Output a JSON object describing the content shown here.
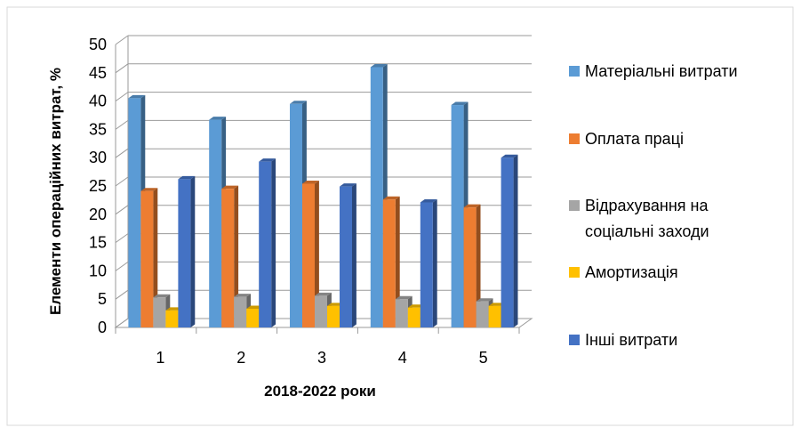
{
  "chart_data": {
    "type": "bar",
    "title": "",
    "xlabel": "2018-2022 роки",
    "ylabel": "Елементи операційних витрат, %",
    "ylim": [
      0,
      50
    ],
    "y_ticks": [
      0,
      5,
      10,
      15,
      20,
      25,
      30,
      35,
      40,
      45,
      50
    ],
    "categories": [
      "1",
      "2",
      "3",
      "4",
      "5"
    ],
    "grid": true,
    "legend_position": "right",
    "series": [
      {
        "name": "Матеріальні витрати",
        "color": "#5B9BD5",
        "values": [
          40.5,
          36.7,
          39.5,
          46.0,
          39.3
        ]
      },
      {
        "name": "Оплата праці",
        "color": "#ED7D31",
        "values": [
          24.1,
          24.5,
          25.4,
          22.6,
          21.2
        ]
      },
      {
        "name": "Відрахування на соціальні заходи",
        "legend_lines": [
          "Відрахування на",
          "соціальні заходи"
        ],
        "color": "#A5A5A5",
        "values": [
          5.3,
          5.4,
          5.6,
          5.0,
          4.6
        ]
      },
      {
        "name": "Амортизація",
        "color": "#FFC000",
        "values": [
          3.0,
          3.3,
          3.8,
          3.5,
          3.8
        ]
      },
      {
        "name": "Інші витрати",
        "color": "#4472C4",
        "values": [
          26.2,
          29.3,
          24.9,
          22.1,
          30.0
        ]
      }
    ]
  }
}
